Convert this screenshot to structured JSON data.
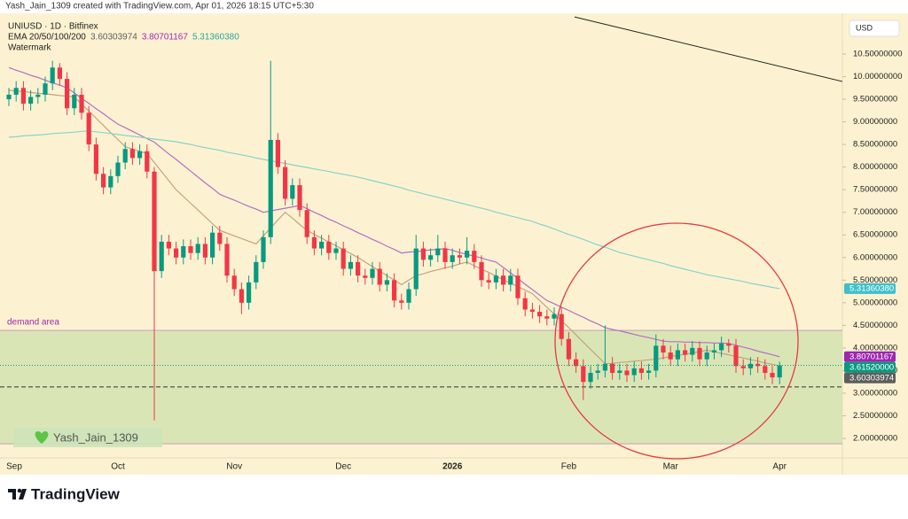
{
  "header": {
    "credit": "Yash_Jain_1309 created with TradingView.com, Apr 01, 2026 18:15 UTC+5:30",
    "symbol": "UNIUSD · 1D · Bitfinex",
    "ema_label": "EMA 20/50/100/200",
    "watermark_label": "Watermark"
  },
  "chart_data": {
    "type": "candlestick",
    "currency": "USD",
    "categories": [
      "Sep",
      null,
      null,
      null,
      null,
      null,
      null,
      null,
      null,
      null,
      null,
      null,
      null,
      null,
      null,
      "Oct",
      null,
      null,
      null,
      null,
      null,
      null,
      null,
      null,
      null,
      null,
      null,
      null,
      null,
      null,
      null,
      "Nov",
      null,
      null,
      null,
      null,
      null,
      null,
      null,
      null,
      null,
      null,
      null,
      null,
      null,
      null,
      "Dec",
      null,
      null,
      null,
      null,
      null,
      null,
      null,
      null,
      null,
      null,
      null,
      null,
      null,
      null,
      "2026",
      null,
      null,
      null,
      null,
      null,
      null,
      null,
      null,
      null,
      null,
      null,
      null,
      null,
      null,
      null,
      "Feb",
      null,
      null,
      null,
      null,
      null,
      null,
      null,
      null,
      null,
      null,
      null,
      null,
      null,
      "Mar",
      null,
      null,
      null,
      null,
      null,
      null,
      null,
      null,
      null,
      null,
      null,
      null,
      null,
      null,
      "Apr"
    ],
    "open": [
      9.5,
      9.6,
      9.75,
      9.4,
      9.55,
      9.6,
      9.85,
      10.2,
      9.95,
      9.3,
      9.6,
      9.2,
      8.5,
      7.85,
      7.55,
      7.8,
      8.1,
      8.4,
      8.2,
      8.35,
      7.9,
      5.7,
      6.35,
      6.2,
      6.0,
      6.25,
      6.1,
      6.3,
      6.0,
      6.55,
      6.3,
      5.6,
      5.3,
      5.0,
      5.45,
      5.9,
      6.45,
      8.6,
      8.0,
      7.3,
      7.6,
      7.05,
      6.45,
      6.2,
      6.35,
      6.1,
      6.2,
      5.75,
      5.9,
      5.6,
      5.55,
      5.75,
      5.4,
      5.5,
      5.05,
      5.0,
      5.3,
      6.2,
      5.95,
      6.05,
      6.2,
      5.9,
      6.05,
      6.0,
      6.15,
      5.9,
      5.5,
      5.45,
      5.6,
      5.4,
      5.6,
      5.1,
      4.85,
      4.8,
      4.7,
      4.65,
      4.75,
      4.2,
      3.75,
      3.6,
      3.25,
      3.45,
      3.5,
      3.65,
      3.45,
      3.5,
      3.4,
      3.55,
      3.45,
      3.5,
      4.05,
      3.9,
      3.75,
      3.95,
      3.85,
      4.0,
      3.75,
      3.9,
      3.95,
      4.1,
      4.05,
      3.6,
      3.55,
      3.65,
      3.6,
      3.45,
      3.35
    ],
    "high": [
      9.75,
      9.9,
      9.9,
      9.7,
      9.75,
      10.0,
      10.35,
      10.3,
      10.1,
      9.75,
      9.75,
      9.35,
      8.65,
      8.0,
      7.95,
      8.25,
      8.55,
      8.55,
      8.5,
      8.5,
      8.0,
      6.5,
      6.5,
      6.35,
      6.4,
      6.4,
      6.45,
      6.45,
      6.7,
      6.7,
      6.45,
      5.75,
      5.45,
      5.6,
      6.05,
      6.6,
      10.35,
      8.75,
      8.15,
      7.75,
      7.75,
      7.2,
      6.6,
      6.5,
      6.5,
      6.35,
      6.35,
      6.05,
      6.05,
      5.75,
      5.9,
      5.9,
      5.65,
      5.65,
      5.2,
      5.45,
      6.5,
      6.35,
      6.2,
      6.5,
      6.35,
      6.2,
      6.2,
      6.45,
      6.3,
      6.05,
      5.65,
      5.75,
      5.75,
      5.75,
      5.75,
      5.25,
      5.0,
      4.95,
      4.85,
      4.9,
      4.9,
      4.35,
      3.9,
      3.75,
      3.6,
      3.65,
      4.5,
      3.8,
      3.65,
      3.65,
      3.7,
      3.7,
      3.65,
      4.3,
      4.2,
      4.05,
      4.1,
      4.1,
      4.15,
      4.15,
      4.05,
      4.1,
      4.25,
      4.2,
      4.2,
      3.75,
      3.8,
      3.8,
      3.75,
      3.6,
      3.7
    ],
    "low": [
      9.35,
      9.45,
      9.25,
      9.25,
      9.4,
      9.45,
      9.7,
      9.8,
      9.15,
      9.15,
      9.05,
      8.35,
      7.7,
      7.4,
      7.4,
      7.65,
      7.95,
      8.05,
      8.05,
      7.75,
      2.4,
      5.55,
      6.05,
      5.85,
      5.85,
      5.95,
      5.95,
      5.85,
      5.85,
      6.15,
      5.45,
      5.15,
      4.75,
      4.85,
      5.3,
      5.75,
      6.3,
      7.85,
      7.15,
      7.15,
      6.9,
      6.3,
      6.05,
      6.05,
      5.95,
      5.95,
      5.6,
      5.6,
      5.45,
      5.4,
      5.4,
      5.25,
      5.25,
      4.9,
      4.85,
      4.85,
      5.15,
      5.8,
      5.8,
      5.9,
      5.75,
      5.75,
      5.85,
      5.85,
      5.75,
      5.35,
      5.3,
      5.3,
      5.25,
      5.25,
      4.95,
      4.7,
      4.65,
      4.55,
      4.5,
      4.5,
      4.05,
      3.6,
      3.45,
      2.85,
      3.1,
      3.3,
      3.35,
      3.3,
      3.3,
      3.25,
      3.25,
      3.3,
      3.3,
      3.35,
      3.75,
      3.6,
      3.6,
      3.7,
      3.7,
      3.6,
      3.6,
      3.75,
      3.8,
      3.9,
      3.45,
      3.4,
      3.4,
      3.45,
      3.3,
      3.2,
      3.2
    ],
    "close": [
      9.6,
      9.75,
      9.4,
      9.55,
      9.6,
      9.85,
      10.2,
      9.95,
      9.3,
      9.6,
      9.2,
      8.5,
      7.85,
      7.55,
      7.8,
      8.1,
      8.4,
      8.2,
      8.35,
      7.9,
      5.7,
      6.35,
      6.2,
      6.0,
      6.25,
      6.1,
      6.3,
      6.0,
      6.55,
      6.3,
      5.6,
      5.3,
      5.0,
      5.45,
      5.9,
      6.45,
      8.6,
      8.0,
      7.3,
      7.6,
      7.05,
      6.45,
      6.2,
      6.35,
      6.1,
      6.2,
      5.75,
      5.9,
      5.6,
      5.55,
      5.75,
      5.4,
      5.5,
      5.05,
      5.0,
      5.3,
      6.2,
      5.95,
      6.05,
      6.2,
      5.9,
      6.05,
      6.0,
      6.15,
      5.9,
      5.5,
      5.45,
      5.6,
      5.4,
      5.6,
      5.1,
      4.85,
      4.8,
      4.7,
      4.65,
      4.75,
      4.2,
      3.75,
      3.6,
      3.25,
      3.45,
      3.5,
      3.65,
      3.45,
      3.5,
      3.4,
      3.55,
      3.45,
      3.5,
      4.05,
      3.9,
      3.75,
      3.95,
      3.85,
      4.0,
      3.75,
      3.9,
      3.95,
      4.1,
      4.05,
      3.6,
      3.55,
      3.65,
      3.6,
      3.45,
      3.35,
      3.6152
    ],
    "close_label": "3.61520000",
    "up_color": "#089981",
    "down_color": "#f23645",
    "series": [
      {
        "color": "#c4a27e",
        "label_color": "#5d5d5d",
        "value_label": "3.60303974",
        "values": [
          9.7,
          9.68,
          9.67,
          9.65,
          9.63,
          9.62,
          9.6,
          9.58,
          9.57,
          9.55,
          9.39,
          9.24,
          9.08,
          8.92,
          8.76,
          8.61,
          8.45,
          8.4,
          8.35,
          8.3,
          8.1,
          7.9,
          7.7,
          7.5,
          7.35,
          7.2,
          7.05,
          6.9,
          6.75,
          6.6,
          6.54,
          6.48,
          6.42,
          6.36,
          6.3,
          6.48,
          6.65,
          6.83,
          7.0,
          6.87,
          6.73,
          6.6,
          6.51,
          6.43,
          6.34,
          6.26,
          6.17,
          6.09,
          6.0,
          5.9,
          5.8,
          5.7,
          5.6,
          5.5,
          5.4,
          5.5,
          5.6,
          5.64,
          5.69,
          5.73,
          5.77,
          5.81,
          5.86,
          5.9,
          5.82,
          5.74,
          5.67,
          5.59,
          5.51,
          5.43,
          5.36,
          5.28,
          5.2,
          5.05,
          4.9,
          4.75,
          4.6,
          4.45,
          4.29,
          4.13,
          3.97,
          3.81,
          3.65,
          3.66,
          3.68,
          3.69,
          3.71,
          3.72,
          3.74,
          3.75,
          3.78,
          3.81,
          3.84,
          3.86,
          3.89,
          3.92,
          3.95,
          3.92,
          3.88,
          3.85,
          3.81,
          3.78,
          3.74,
          3.71,
          3.67,
          3.64,
          3.60303974
        ]
      },
      {
        "color": "#b46fc4",
        "label_color": "#9c27b0",
        "value_label": "3.80701167",
        "values": [
          10.2,
          10.14,
          10.09,
          10.03,
          9.98,
          9.92,
          9.86,
          9.81,
          9.75,
          9.64,
          9.52,
          9.41,
          9.29,
          9.18,
          9.06,
          8.95,
          8.87,
          8.79,
          8.71,
          8.63,
          8.55,
          8.42,
          8.29,
          8.17,
          8.04,
          7.91,
          7.78,
          7.65,
          7.53,
          7.4,
          7.33,
          7.27,
          7.2,
          7.13,
          7.07,
          7.0,
          7.03,
          7.06,
          7.09,
          7.12,
          7.15,
          7.08,
          7.0,
          6.93,
          6.85,
          6.78,
          6.7,
          6.63,
          6.55,
          6.48,
          6.4,
          6.33,
          6.25,
          6.18,
          6.1,
          6.12,
          6.13,
          6.15,
          6.17,
          6.18,
          6.2,
          6.16,
          6.11,
          6.07,
          6.03,
          5.99,
          5.94,
          5.9,
          5.78,
          5.66,
          5.54,
          5.41,
          5.29,
          5.17,
          5.05,
          4.98,
          4.9,
          4.83,
          4.75,
          4.68,
          4.6,
          4.53,
          4.45,
          4.41,
          4.38,
          4.34,
          4.3,
          4.26,
          4.23,
          4.19,
          4.15,
          4.14,
          4.14,
          4.13,
          4.13,
          4.12,
          4.12,
          4.11,
          4.11,
          4.1,
          4.06,
          4.02,
          3.98,
          3.93,
          3.89,
          3.85,
          3.80701167
        ]
      },
      {
        "color": "#86d3cc",
        "label_color": "#26a69a",
        "value_label": "5.31360380",
        "values": [
          8.66,
          8.67,
          8.69,
          8.7,
          8.71,
          8.72,
          8.74,
          8.75,
          8.76,
          8.77,
          8.79,
          8.8,
          8.78,
          8.76,
          8.74,
          8.72,
          8.7,
          8.68,
          8.66,
          8.64,
          8.62,
          8.6,
          8.58,
          8.56,
          8.53,
          8.5,
          8.46,
          8.43,
          8.4,
          8.37,
          8.33,
          8.3,
          8.27,
          8.24,
          8.2,
          8.17,
          8.14,
          8.11,
          8.08,
          8.05,
          8.02,
          7.99,
          7.96,
          7.93,
          7.9,
          7.87,
          7.84,
          7.81,
          7.78,
          7.74,
          7.7,
          7.66,
          7.62,
          7.58,
          7.54,
          7.49,
          7.45,
          7.41,
          7.37,
          7.33,
          7.29,
          7.25,
          7.21,
          7.17,
          7.13,
          7.09,
          7.05,
          7.0,
          6.96,
          6.92,
          6.88,
          6.84,
          6.8,
          6.74,
          6.69,
          6.63,
          6.57,
          6.51,
          6.46,
          6.4,
          6.34,
          6.28,
          6.23,
          6.17,
          6.11,
          6.07,
          6.03,
          5.99,
          5.95,
          5.91,
          5.87,
          5.82,
          5.78,
          5.74,
          5.7,
          5.66,
          5.62,
          5.59,
          5.56,
          5.53,
          5.5,
          5.47,
          5.43,
          5.4,
          5.37,
          5.34,
          5.3136038
        ]
      }
    ],
    "tag_colors": {
      "ema": [
        "#5d5d5d",
        "#9c27b0",
        "#3fbfc9"
      ],
      "close": "#089981"
    },
    "ylim": [
      1.57,
      11.4
    ],
    "yticks": [
      {
        "value": 2.0,
        "label": "2.00000000"
      },
      {
        "value": 2.5,
        "label": "2.50000000"
      },
      {
        "value": 3.0,
        "label": "3.00000000"
      },
      {
        "value": 3.5,
        "label": "3.50000000"
      },
      {
        "value": 4.0,
        "label": "4.00000000"
      },
      {
        "value": 4.5,
        "label": "4.50000000"
      },
      {
        "value": 5.0,
        "label": "5.00000000"
      },
      {
        "value": 5.5,
        "label": "5.50000000"
      },
      {
        "value": 6.0,
        "label": "6.00000000"
      },
      {
        "value": 6.5,
        "label": "6.50000000"
      },
      {
        "value": 7.0,
        "label": "7.00000000"
      },
      {
        "value": 7.5,
        "label": "7.50000000"
      },
      {
        "value": 8.0,
        "label": "8.00000000"
      },
      {
        "value": 8.5,
        "label": "8.50000000"
      },
      {
        "value": 9.0,
        "label": "9.00000000"
      },
      {
        "value": 9.5,
        "label": "9.50000000"
      },
      {
        "value": 10.0,
        "label": "10.00000000"
      },
      {
        "value": 10.5,
        "label": "10.50000000"
      }
    ],
    "grid": false,
    "demand_area": {
      "label": "demand area",
      "top": 4.39,
      "bottom": 1.88,
      "color": "#9c27b0"
    },
    "support_line": 3.14,
    "trend_line": [
      [
        77.8,
        11.32
      ],
      [
        115.2,
        9.87
      ]
    ],
    "watermark": "Yash_Jain_1309"
  },
  "footer": {
    "brand": "TradingView"
  }
}
